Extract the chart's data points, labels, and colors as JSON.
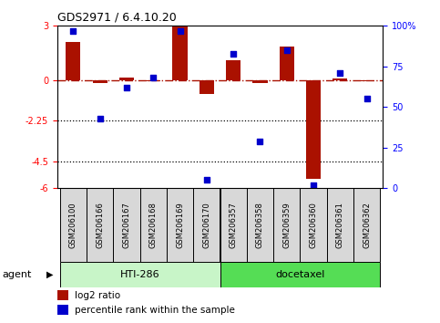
{
  "title": "GDS2971 / 6.4.10.20",
  "samples": [
    "GSM206100",
    "GSM206166",
    "GSM206167",
    "GSM206168",
    "GSM206169",
    "GSM206170",
    "GSM206357",
    "GSM206358",
    "GSM206359",
    "GSM206360",
    "GSM206361",
    "GSM206362"
  ],
  "log2_ratio": [
    2.1,
    -0.15,
    0.15,
    -0.05,
    2.95,
    -0.8,
    1.1,
    -0.15,
    1.85,
    -5.5,
    0.1,
    -0.05
  ],
  "percentile_rank": [
    97,
    43,
    62,
    68,
    97,
    5,
    83,
    29,
    85,
    2,
    71,
    55
  ],
  "group1_count": 6,
  "group2_count": 6,
  "group1_label": "HTI-286",
  "group2_label": "docetaxel",
  "group1_color": "#c8f5c8",
  "group2_color": "#55dd55",
  "bar_color": "#aa1100",
  "dot_color": "#0000cc",
  "ylim_left": [
    -6,
    3
  ],
  "ylim_right": [
    0,
    100
  ],
  "yticks_left": [
    3,
    0,
    -2.25,
    -4.5,
    -6
  ],
  "yticks_right": [
    100,
    75,
    50,
    25,
    0
  ],
  "dotted_lines": [
    -2.25,
    -4.5
  ],
  "legend_red": "log2 ratio",
  "legend_blue": "percentile rank within the sample",
  "agent_label": "agent",
  "bar_width": 0.55
}
